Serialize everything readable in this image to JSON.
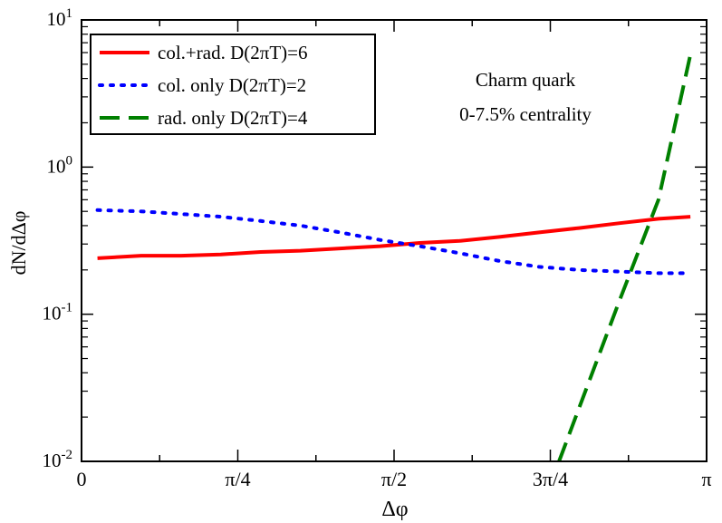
{
  "chart_data": {
    "type": "line",
    "title": "",
    "xlabel": "Δφ",
    "ylabel": "dN/dΔφ",
    "xlim": [
      0,
      3.14159
    ],
    "ylim": [
      0.01,
      10
    ],
    "yscale": "log",
    "grid": false,
    "legend_position": "top-left",
    "x_ticks": [
      {
        "value": 0,
        "label": "0"
      },
      {
        "value": 0.7854,
        "label": "π/4"
      },
      {
        "value": 1.5708,
        "label": "π/2"
      },
      {
        "value": 2.3562,
        "label": "3π/4"
      },
      {
        "value": 3.14159,
        "label": "π"
      }
    ],
    "x_minor_ticks": [
      0.3927,
      1.1781,
      1.9635,
      2.7489
    ],
    "y_ticks": [
      {
        "value": 0.01,
        "base": "10",
        "exp": "-2"
      },
      {
        "value": 0.1,
        "base": "10",
        "exp": "-1"
      },
      {
        "value": 1,
        "base": "10",
        "exp": "0"
      },
      {
        "value": 10,
        "base": "10",
        "exp": "1"
      }
    ],
    "annotations": [
      "Charm quark",
      "0-7.5% centrality"
    ],
    "series": [
      {
        "name": "col.+rad. D(2πT)=6",
        "color": "#ff0000",
        "style": "solid",
        "x": [
          0.08,
          0.3,
          0.5,
          0.7,
          0.9,
          1.1,
          1.3,
          1.5,
          1.7,
          1.9,
          2.1,
          2.3,
          2.5,
          2.7,
          2.9,
          3.06
        ],
        "y": [
          0.24,
          0.25,
          0.25,
          0.255,
          0.265,
          0.27,
          0.28,
          0.29,
          0.305,
          0.315,
          0.335,
          0.36,
          0.385,
          0.415,
          0.445,
          0.46
        ]
      },
      {
        "name": "col. only D(2πT)=2",
        "color": "#0000ff",
        "style": "dotted",
        "x": [
          0.08,
          0.3,
          0.5,
          0.7,
          0.9,
          1.1,
          1.3,
          1.5,
          1.7,
          1.9,
          2.1,
          2.3,
          2.5,
          2.7,
          2.9,
          3.06
        ],
        "y": [
          0.51,
          0.5,
          0.48,
          0.46,
          0.43,
          0.4,
          0.36,
          0.32,
          0.29,
          0.26,
          0.23,
          0.21,
          0.2,
          0.195,
          0.19,
          0.19
        ]
      },
      {
        "name": "rad. only D(2πT)=4",
        "color": "#008000",
        "style": "dashed",
        "x": [
          2.4,
          2.7,
          2.9,
          3.06
        ],
        "y": [
          0.01,
          0.12,
          0.6,
          5.8
        ]
      }
    ]
  }
}
